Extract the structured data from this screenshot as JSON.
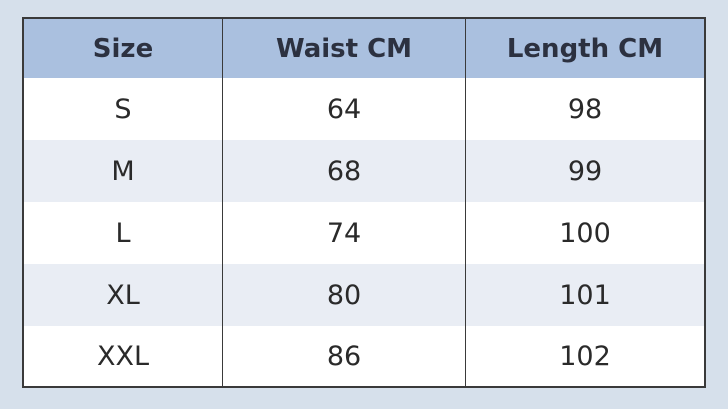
{
  "table": {
    "header": [
      "Size",
      "Waist CM",
      "Length CM"
    ],
    "rows": [
      [
        "S",
        64,
        98
      ],
      [
        "M",
        68,
        99
      ],
      [
        "L",
        74,
        100
      ],
      [
        "XL",
        80,
        101
      ],
      [
        "XXL",
        86,
        102
      ]
    ]
  }
}
